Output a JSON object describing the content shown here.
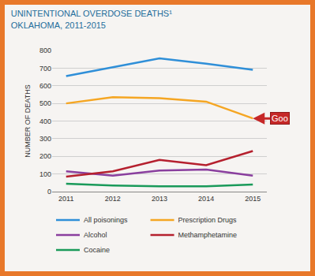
{
  "chart_data": {
    "type": "line",
    "title": "UNINTENTIONAL OVERDOSE DEATHS¹",
    "subtitle": "OKLAHOMA, 2011-2015",
    "y_label": "NUMBER OF DEATHS",
    "x": [
      2011,
      2012,
      2013,
      2014,
      2015
    ],
    "series": [
      {
        "name": "All poisonings",
        "color": "#2f8fd8",
        "values": [
          655,
          705,
          755,
          725,
          690
        ]
      },
      {
        "name": "Prescription Drugs",
        "color": "#f5a623",
        "values": [
          500,
          535,
          530,
          510,
          415
        ]
      },
      {
        "name": "Alcohol",
        "color": "#8a3f9e",
        "values": [
          115,
          90,
          120,
          125,
          90
        ]
      },
      {
        "name": "Methamphetamine",
        "color": "#b5202e",
        "values": [
          85,
          115,
          180,
          150,
          230
        ]
      },
      {
        "name": "Cocaine",
        "color": "#1a9a5a",
        "values": [
          45,
          35,
          30,
          30,
          40
        ]
      }
    ],
    "xlim": [
      2010.7,
      2015.3
    ],
    "xticks": [
      2011,
      2012,
      2013,
      2014,
      2015
    ],
    "ylim": [
      0,
      800
    ],
    "yticks": [
      0,
      100,
      200,
      300,
      400,
      500,
      600,
      700,
      800
    ],
    "grid": true,
    "legend": "bottom",
    "annotations": [
      {
        "text": "Goo",
        "x": 2015,
        "y": 415
      }
    ]
  }
}
